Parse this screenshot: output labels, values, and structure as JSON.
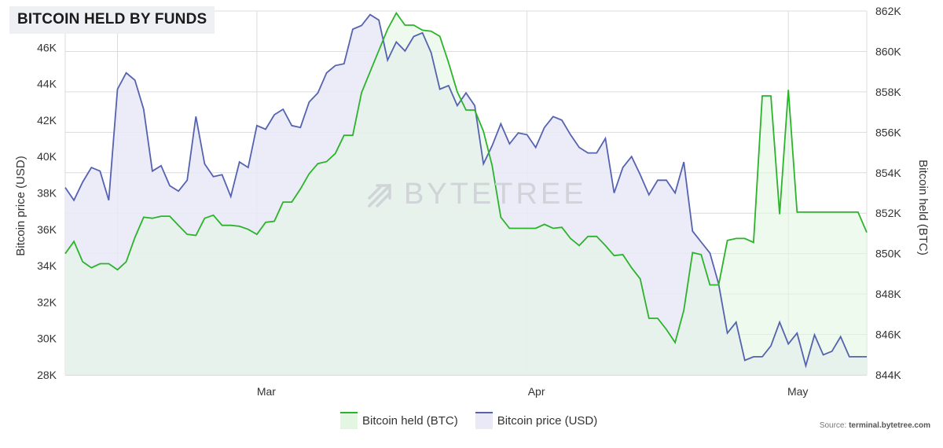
{
  "title": "BITCOIN HELD BY FUNDS",
  "watermark": "BYTETREE",
  "source_prefix": "Source: ",
  "source_site": "terminal.bytetree.com",
  "colors": {
    "held_line": "#2bb32b",
    "held_fill": "#e3f6e1",
    "price_line": "#5562b0",
    "price_fill": "#e9e9f8",
    "grid": "#dcdcdc"
  },
  "chart_data": {
    "type": "line",
    "title": "BITCOIN HELD BY FUNDS",
    "ylabel_left": "Bitcoin price (USD)",
    "ylabel_right": "Bitcoin held (BTC)",
    "left_axis": {
      "min": 28000,
      "max": 48000,
      "ticks": [
        28000,
        30000,
        32000,
        34000,
        36000,
        38000,
        40000,
        42000,
        44000,
        46000
      ],
      "tick_labels": [
        "28K",
        "30K",
        "32K",
        "34K",
        "36K",
        "38K",
        "40K",
        "42K",
        "44K",
        "46K"
      ]
    },
    "right_axis": {
      "min": 844000,
      "max": 862000,
      "ticks": [
        844000,
        846000,
        848000,
        850000,
        852000,
        854000,
        856000,
        858000,
        860000,
        862000
      ],
      "tick_labels": [
        "844K",
        "846K",
        "848K",
        "850K",
        "852K",
        "854K",
        "856K",
        "858K",
        "860K",
        "862K"
      ]
    },
    "x_axis": {
      "start": "2022-02-07",
      "end": "2022-05-10",
      "ticks": [
        "2022-02-13",
        "2022-03-01",
        "2022-04-01",
        "2022-05-01"
      ],
      "tick_labels": [
        "Mar",
        "Apr",
        "May"
      ],
      "tick_label_dates": [
        "2022-03-01",
        "2022-04-01",
        "2022-05-01"
      ]
    },
    "grid": true,
    "legend_position": "bottom",
    "series": [
      {
        "name": "Bitcoin held (BTC)",
        "axis": "right",
        "x": [
          "2022-02-07",
          "2022-02-08",
          "2022-02-09",
          "2022-02-10",
          "2022-02-11",
          "2022-02-12",
          "2022-02-13",
          "2022-02-14",
          "2022-02-15",
          "2022-02-16",
          "2022-02-17",
          "2022-02-18",
          "2022-02-19",
          "2022-02-20",
          "2022-02-21",
          "2022-02-22",
          "2022-02-23",
          "2022-02-24",
          "2022-02-25",
          "2022-02-26",
          "2022-02-27",
          "2022-02-28",
          "2022-03-01",
          "2022-03-02",
          "2022-03-03",
          "2022-03-04",
          "2022-03-05",
          "2022-03-06",
          "2022-03-07",
          "2022-03-08",
          "2022-03-09",
          "2022-03-10",
          "2022-03-11",
          "2022-03-12",
          "2022-03-13",
          "2022-03-14",
          "2022-03-15",
          "2022-03-16",
          "2022-03-17",
          "2022-03-18",
          "2022-03-19",
          "2022-03-20",
          "2022-03-21",
          "2022-03-22",
          "2022-03-23",
          "2022-03-24",
          "2022-03-25",
          "2022-03-26",
          "2022-03-27",
          "2022-03-28",
          "2022-03-29",
          "2022-03-30",
          "2022-03-31",
          "2022-04-01",
          "2022-04-02",
          "2022-04-03",
          "2022-04-04",
          "2022-04-05",
          "2022-04-06",
          "2022-04-07",
          "2022-04-08",
          "2022-04-09",
          "2022-04-10",
          "2022-04-11",
          "2022-04-12",
          "2022-04-13",
          "2022-04-14",
          "2022-04-15",
          "2022-04-16",
          "2022-04-17",
          "2022-04-18",
          "2022-04-19",
          "2022-04-20",
          "2022-04-21",
          "2022-04-22",
          "2022-04-23",
          "2022-04-24",
          "2022-04-25",
          "2022-04-26",
          "2022-04-27",
          "2022-04-28",
          "2022-04-29",
          "2022-04-30",
          "2022-05-01",
          "2022-05-02",
          "2022-05-03",
          "2022-05-04",
          "2022-05-05",
          "2022-05-06",
          "2022-05-07",
          "2022-05-08",
          "2022-05-09",
          "2022-05-10"
        ],
        "values": [
          850000,
          850600,
          849600,
          849300,
          849500,
          849500,
          849200,
          849600,
          850800,
          851800,
          851750,
          851850,
          851850,
          851400,
          850950,
          850900,
          851750,
          851900,
          851400,
          851400,
          851350,
          851200,
          850950,
          851550,
          851600,
          852550,
          852550,
          853200,
          853950,
          854450,
          854550,
          854950,
          855850,
          855850,
          857950,
          859000,
          860050,
          861100,
          861900,
          861300,
          861300,
          861050,
          861000,
          860750,
          859450,
          858000,
          857100,
          857100,
          856050,
          854350,
          851800,
          851250,
          851250,
          851250,
          851250,
          851450,
          851250,
          851300,
          850750,
          850400,
          850850,
          850850,
          850400,
          849900,
          849950,
          849300,
          848750,
          846800,
          846800,
          846250,
          845600,
          847200,
          850050,
          849950,
          848450,
          848450,
          850650,
          850750,
          850750,
          850550,
          857800,
          857800,
          851950,
          858100,
          852050,
          852050,
          852050,
          852050,
          852050,
          852050,
          852050,
          852050,
          851050
        ]
      },
      {
        "name": "Bitcoin price (USD)",
        "axis": "left",
        "x": [
          "2022-02-07",
          "2022-02-08",
          "2022-02-09",
          "2022-02-10",
          "2022-02-11",
          "2022-02-12",
          "2022-02-13",
          "2022-02-14",
          "2022-02-15",
          "2022-02-16",
          "2022-02-17",
          "2022-02-18",
          "2022-02-19",
          "2022-02-20",
          "2022-02-21",
          "2022-02-22",
          "2022-02-23",
          "2022-02-24",
          "2022-02-25",
          "2022-02-26",
          "2022-02-27",
          "2022-02-28",
          "2022-03-01",
          "2022-03-02",
          "2022-03-03",
          "2022-03-04",
          "2022-03-05",
          "2022-03-06",
          "2022-03-07",
          "2022-03-08",
          "2022-03-09",
          "2022-03-10",
          "2022-03-11",
          "2022-03-12",
          "2022-03-13",
          "2022-03-14",
          "2022-03-15",
          "2022-03-16",
          "2022-03-17",
          "2022-03-18",
          "2022-03-19",
          "2022-03-20",
          "2022-03-21",
          "2022-03-22",
          "2022-03-23",
          "2022-03-24",
          "2022-03-25",
          "2022-03-26",
          "2022-03-27",
          "2022-03-28",
          "2022-03-29",
          "2022-03-30",
          "2022-03-31",
          "2022-04-01",
          "2022-04-02",
          "2022-04-03",
          "2022-04-04",
          "2022-04-05",
          "2022-04-06",
          "2022-04-07",
          "2022-04-08",
          "2022-04-09",
          "2022-04-10",
          "2022-04-11",
          "2022-04-12",
          "2022-04-13",
          "2022-04-14",
          "2022-04-15",
          "2022-04-16",
          "2022-04-17",
          "2022-04-18",
          "2022-04-19",
          "2022-04-20",
          "2022-04-21",
          "2022-04-22",
          "2022-04-23",
          "2022-04-24",
          "2022-04-25",
          "2022-04-26",
          "2022-04-27",
          "2022-04-28",
          "2022-04-29",
          "2022-04-30",
          "2022-05-01",
          "2022-05-02",
          "2022-05-03",
          "2022-05-04",
          "2022-05-05",
          "2022-05-06",
          "2022-05-07",
          "2022-05-08",
          "2022-05-09",
          "2022-05-10"
        ],
        "values": [
          38300,
          37600,
          38600,
          39400,
          39200,
          37600,
          43700,
          44600,
          44200,
          42600,
          39200,
          39500,
          38400,
          38100,
          38700,
          42200,
          39600,
          38900,
          39000,
          37800,
          39700,
          39400,
          41700,
          41500,
          42300,
          42600,
          41700,
          41600,
          43000,
          43500,
          44600,
          45000,
          45100,
          47000,
          47200,
          47800,
          47500,
          45300,
          46300,
          45800,
          46600,
          46800,
          45700,
          43700,
          43900,
          42800,
          43500,
          42800,
          39600,
          40600,
          41800,
          40700,
          41300,
          41200,
          40500,
          41600,
          42200,
          42000,
          41200,
          40500,
          40200,
          40200,
          41000,
          38000,
          39400,
          40000,
          39000,
          37900,
          38700,
          38700,
          38000,
          39700,
          35900,
          35300,
          34700,
          33000,
          30300,
          30900,
          28800,
          29000,
          29000,
          29600,
          30900,
          29700,
          30300,
          28500,
          30200,
          29100,
          29300,
          30100,
          29000,
          29000,
          29000
        ]
      }
    ]
  },
  "legend": {
    "items": [
      "Bitcoin held (BTC)",
      "Bitcoin price (USD)"
    ]
  }
}
